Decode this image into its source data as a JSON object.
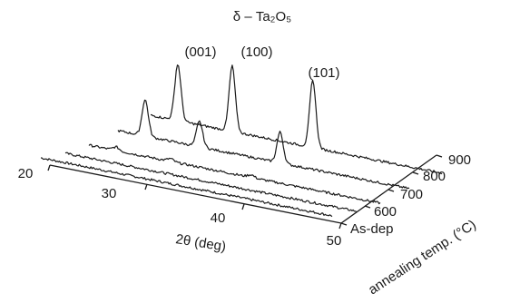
{
  "chart_data": {
    "type": "line",
    "title": "δ – Ta₂O₅",
    "xlabel": "2θ (deg)",
    "ylabel": "annealing temp. (°C)",
    "x_ticks": [
      "20",
      "30",
      "40",
      "50"
    ],
    "y_ticks": [
      "As-dep",
      "600",
      "700",
      "800",
      "900"
    ],
    "xlim": [
      20,
      50
    ],
    "peak_labels": [
      {
        "text": "(001)",
        "x": 22.8
      },
      {
        "text": "(100)",
        "x": 28.4
      },
      {
        "text": "(101)",
        "x": 36.7
      }
    ],
    "series": [
      {
        "name": "As-dep",
        "peaks": []
      },
      {
        "name": "600",
        "peaks": []
      },
      {
        "name": "700",
        "peaks": [
          {
            "x": 22.8,
            "h": 4
          },
          {
            "x": 28.4,
            "h": 3
          },
          {
            "x": 36.7,
            "h": 3
          }
        ]
      },
      {
        "name": "800",
        "peaks": [
          {
            "x": 22.8,
            "h": 40
          },
          {
            "x": 28.4,
            "h": 28
          },
          {
            "x": 36.7,
            "h": 34
          }
        ]
      },
      {
        "name": "900",
        "peaks": [
          {
            "x": 22.8,
            "h": 62
          },
          {
            "x": 28.4,
            "h": 72
          },
          {
            "x": 36.7,
            "h": 74
          }
        ]
      }
    ]
  }
}
